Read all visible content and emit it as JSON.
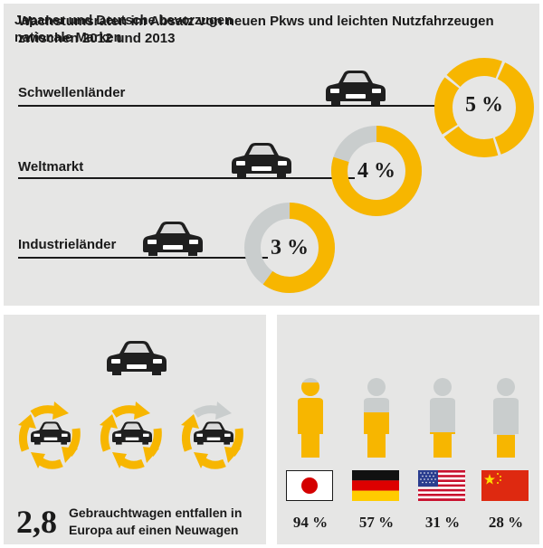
{
  "top": {
    "title": "Wachstumsraten im Absatz von neuen Pkws und leichten Nutzfahrzeugen zwischen 2012 und 2013",
    "rows": [
      {
        "label": "Schwellenländer",
        "value_text": "5 %",
        "value": 5
      },
      {
        "label": "Weltmarkt",
        "value_text": "4 %",
        "value": 4
      },
      {
        "label": "Industrieländer",
        "value_text": "3 %",
        "value": 3
      }
    ]
  },
  "bottom_left": {
    "number": "2,8",
    "caption_line1": "Gebrauchtwagen entfallen in",
    "caption_line2": "Europa auf einen Neuwagen"
  },
  "bottom_right": {
    "title": "Japaner und Deutsche bevorzugen nationale Marken",
    "countries": [
      {
        "flag": "japan-flag-icon",
        "value_text": "94 %",
        "value": 94
      },
      {
        "flag": "germany-flag-icon",
        "value_text": "57 %",
        "value": 57
      },
      {
        "flag": "usa-flag-icon",
        "value_text": "31 %",
        "value": 31
      },
      {
        "flag": "china-flag-icon",
        "value_text": "28 %",
        "value": 28
      }
    ]
  },
  "colors": {
    "accent": "#f7b600",
    "gray_light": "#c9cdcd",
    "panel": "#e6e6e5",
    "dark": "#1a1a1a"
  },
  "icons": [
    "car-icon",
    "cycle-arrow-icon",
    "person-icon"
  ]
}
